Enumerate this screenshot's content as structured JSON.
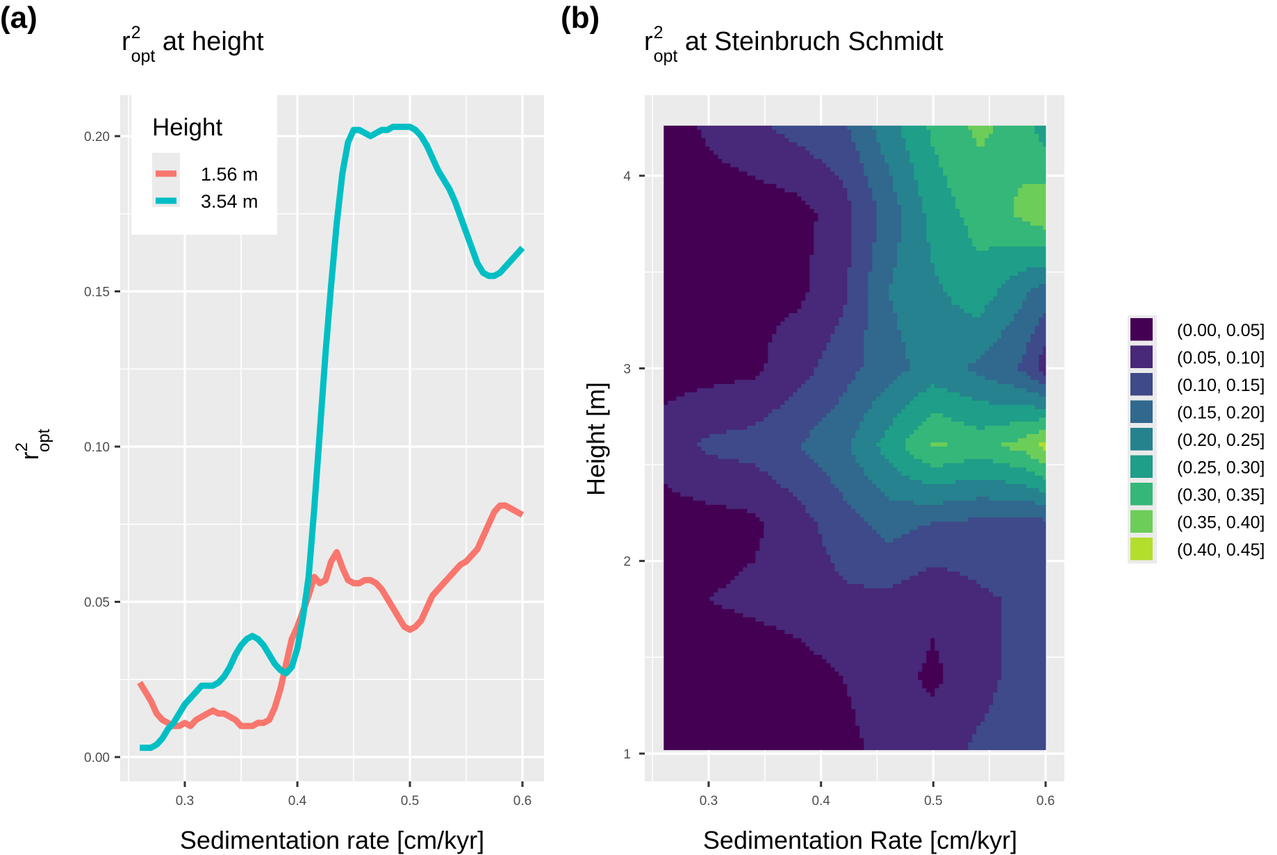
{
  "figure": {
    "panel_a_tag": "(a)",
    "panel_b_tag": "(b)"
  },
  "chart_data": [
    {
      "type": "line",
      "panel": "a",
      "title": {
        "base": "r",
        "sup": "2",
        "sub": "opt",
        "rest": " at height"
      },
      "xlabel": "Sedimentation rate [cm/kyr]",
      "ylabel": {
        "base": "r",
        "sup": "2",
        "sub": "opt"
      },
      "xlim": [
        0.25,
        0.61
      ],
      "ylim": [
        -0.005,
        0.21
      ],
      "xticks": [
        0.3,
        0.4,
        0.5,
        0.6
      ],
      "xtick_labels": [
        "0.3",
        "0.4",
        "0.5",
        "0.6"
      ],
      "yticks": [
        0.0,
        0.05,
        0.1,
        0.15,
        0.2
      ],
      "ytick_labels": [
        "0.00",
        "0.05",
        "0.10",
        "0.15",
        "0.20"
      ],
      "grid": true,
      "legend": {
        "title": "Height",
        "placement": "top-left"
      },
      "series": [
        {
          "name": "1.56 m",
          "color": "#F8766D",
          "x": [
            0.26,
            0.265,
            0.27,
            0.275,
            0.28,
            0.285,
            0.29,
            0.295,
            0.3,
            0.305,
            0.31,
            0.315,
            0.32,
            0.325,
            0.33,
            0.335,
            0.34,
            0.345,
            0.35,
            0.355,
            0.36,
            0.365,
            0.37,
            0.375,
            0.38,
            0.385,
            0.39,
            0.395,
            0.4,
            0.405,
            0.41,
            0.415,
            0.42,
            0.425,
            0.43,
            0.435,
            0.44,
            0.445,
            0.45,
            0.455,
            0.46,
            0.465,
            0.47,
            0.475,
            0.48,
            0.485,
            0.49,
            0.495,
            0.5,
            0.505,
            0.51,
            0.515,
            0.52,
            0.525,
            0.53,
            0.535,
            0.54,
            0.545,
            0.55,
            0.555,
            0.56,
            0.565,
            0.57,
            0.575,
            0.58,
            0.585,
            0.59,
            0.595,
            0.6
          ],
          "y": [
            0.024,
            0.021,
            0.018,
            0.014,
            0.012,
            0.011,
            0.01,
            0.01,
            0.011,
            0.01,
            0.012,
            0.013,
            0.014,
            0.015,
            0.014,
            0.014,
            0.013,
            0.012,
            0.01,
            0.01,
            0.01,
            0.011,
            0.011,
            0.012,
            0.016,
            0.022,
            0.03,
            0.038,
            0.042,
            0.047,
            0.052,
            0.058,
            0.056,
            0.057,
            0.063,
            0.066,
            0.061,
            0.057,
            0.056,
            0.056,
            0.057,
            0.057,
            0.056,
            0.054,
            0.051,
            0.048,
            0.045,
            0.042,
            0.041,
            0.042,
            0.044,
            0.048,
            0.052,
            0.054,
            0.056,
            0.058,
            0.06,
            0.062,
            0.063,
            0.065,
            0.067,
            0.071,
            0.075,
            0.079,
            0.081,
            0.081,
            0.08,
            0.079,
            0.078
          ]
        },
        {
          "name": "3.54 m",
          "color": "#00BFC4",
          "x": [
            0.26,
            0.265,
            0.27,
            0.275,
            0.28,
            0.285,
            0.29,
            0.295,
            0.3,
            0.305,
            0.31,
            0.315,
            0.32,
            0.325,
            0.33,
            0.335,
            0.34,
            0.345,
            0.35,
            0.355,
            0.36,
            0.365,
            0.37,
            0.375,
            0.38,
            0.385,
            0.39,
            0.395,
            0.4,
            0.405,
            0.41,
            0.415,
            0.42,
            0.425,
            0.43,
            0.435,
            0.44,
            0.445,
            0.45,
            0.455,
            0.46,
            0.465,
            0.47,
            0.475,
            0.48,
            0.485,
            0.49,
            0.495,
            0.5,
            0.505,
            0.51,
            0.515,
            0.52,
            0.525,
            0.53,
            0.535,
            0.54,
            0.545,
            0.55,
            0.555,
            0.56,
            0.565,
            0.57,
            0.575,
            0.58,
            0.585,
            0.59,
            0.595,
            0.6
          ],
          "y": [
            0.003,
            0.003,
            0.003,
            0.004,
            0.006,
            0.009,
            0.011,
            0.014,
            0.017,
            0.019,
            0.021,
            0.023,
            0.023,
            0.023,
            0.024,
            0.026,
            0.029,
            0.033,
            0.036,
            0.038,
            0.039,
            0.038,
            0.036,
            0.033,
            0.03,
            0.028,
            0.027,
            0.029,
            0.035,
            0.045,
            0.058,
            0.08,
            0.105,
            0.13,
            0.152,
            0.172,
            0.188,
            0.198,
            0.202,
            0.202,
            0.201,
            0.2,
            0.201,
            0.202,
            0.202,
            0.203,
            0.203,
            0.203,
            0.203,
            0.202,
            0.2,
            0.197,
            0.193,
            0.189,
            0.186,
            0.183,
            0.179,
            0.174,
            0.169,
            0.164,
            0.159,
            0.156,
            0.155,
            0.155,
            0.156,
            0.158,
            0.16,
            0.162,
            0.164
          ]
        }
      ]
    },
    {
      "type": "heatmap",
      "subtype": "filled-contour",
      "panel": "b",
      "title": {
        "base": "r",
        "sup": "2",
        "sub": "opt",
        "rest": " at Steinbruch Schmidt"
      },
      "xlabel": "Sedimentation Rate [cm/kyr]",
      "ylabel": "Height [m]",
      "xlim": [
        0.25,
        0.61
      ],
      "ylim": [
        0.95,
        4.33
      ],
      "data_extent": {
        "x": [
          0.26,
          0.6
        ],
        "y": [
          1.02,
          4.26
        ]
      },
      "xticks": [
        0.3,
        0.4,
        0.5,
        0.6
      ],
      "xtick_labels": [
        "0.3",
        "0.4",
        "0.5",
        "0.6"
      ],
      "yticks": [
        1,
        2,
        3,
        4
      ],
      "ytick_labels": [
        "1",
        "2",
        "3",
        "4"
      ],
      "grid": true,
      "legend": {
        "title": "",
        "placement": "right"
      },
      "levels": [
        {
          "label": "(0.00, 0.05]",
          "color": "#440154"
        },
        {
          "label": "(0.05, 0.10]",
          "color": "#482878"
        },
        {
          "label": "(0.10, 0.15]",
          "color": "#3E4A89"
        },
        {
          "label": "(0.15, 0.20]",
          "color": "#31688E"
        },
        {
          "label": "(0.20, 0.25]",
          "color": "#26828E"
        },
        {
          "label": "(0.25, 0.30]",
          "color": "#1F9E89"
        },
        {
          "label": "(0.30, 0.35]",
          "color": "#35B779"
        },
        {
          "label": "(0.35, 0.40]",
          "color": "#6DCD59"
        },
        {
          "label": "(0.40, 0.45]",
          "color": "#B4DE2C"
        }
      ],
      "grid_x": [
        0.26,
        0.3,
        0.34,
        0.38,
        0.42,
        0.46,
        0.5,
        0.54,
        0.58,
        0.6
      ],
      "grid_y": [
        1.0,
        1.4,
        1.8,
        2.2,
        2.6,
        3.0,
        3.4,
        3.8,
        4.26
      ],
      "z": [
        [
          0.02,
          0.02,
          0.02,
          0.03,
          0.04,
          0.06,
          0.08,
          0.11,
          0.13,
          0.14
        ],
        [
          0.02,
          0.02,
          0.02,
          0.03,
          0.05,
          0.07,
          0.04,
          0.08,
          0.12,
          0.13
        ],
        [
          0.04,
          0.05,
          0.06,
          0.07,
          0.09,
          0.09,
          0.06,
          0.09,
          0.11,
          0.12
        ],
        [
          0.03,
          0.03,
          0.04,
          0.08,
          0.13,
          0.17,
          0.15,
          0.14,
          0.13,
          0.14
        ],
        [
          0.07,
          0.11,
          0.12,
          0.15,
          0.19,
          0.27,
          0.36,
          0.33,
          0.37,
          0.42
        ],
        [
          0.03,
          0.03,
          0.04,
          0.08,
          0.13,
          0.18,
          0.22,
          0.19,
          0.14,
          0.07
        ],
        [
          0.02,
          0.03,
          0.04,
          0.04,
          0.09,
          0.2,
          0.24,
          0.28,
          0.21,
          0.18
        ],
        [
          0.02,
          0.02,
          0.02,
          0.03,
          0.08,
          0.17,
          0.27,
          0.32,
          0.36,
          0.39
        ],
        [
          0.02,
          0.06,
          0.09,
          0.12,
          0.14,
          0.23,
          0.31,
          0.36,
          0.33,
          0.27
        ]
      ]
    }
  ]
}
